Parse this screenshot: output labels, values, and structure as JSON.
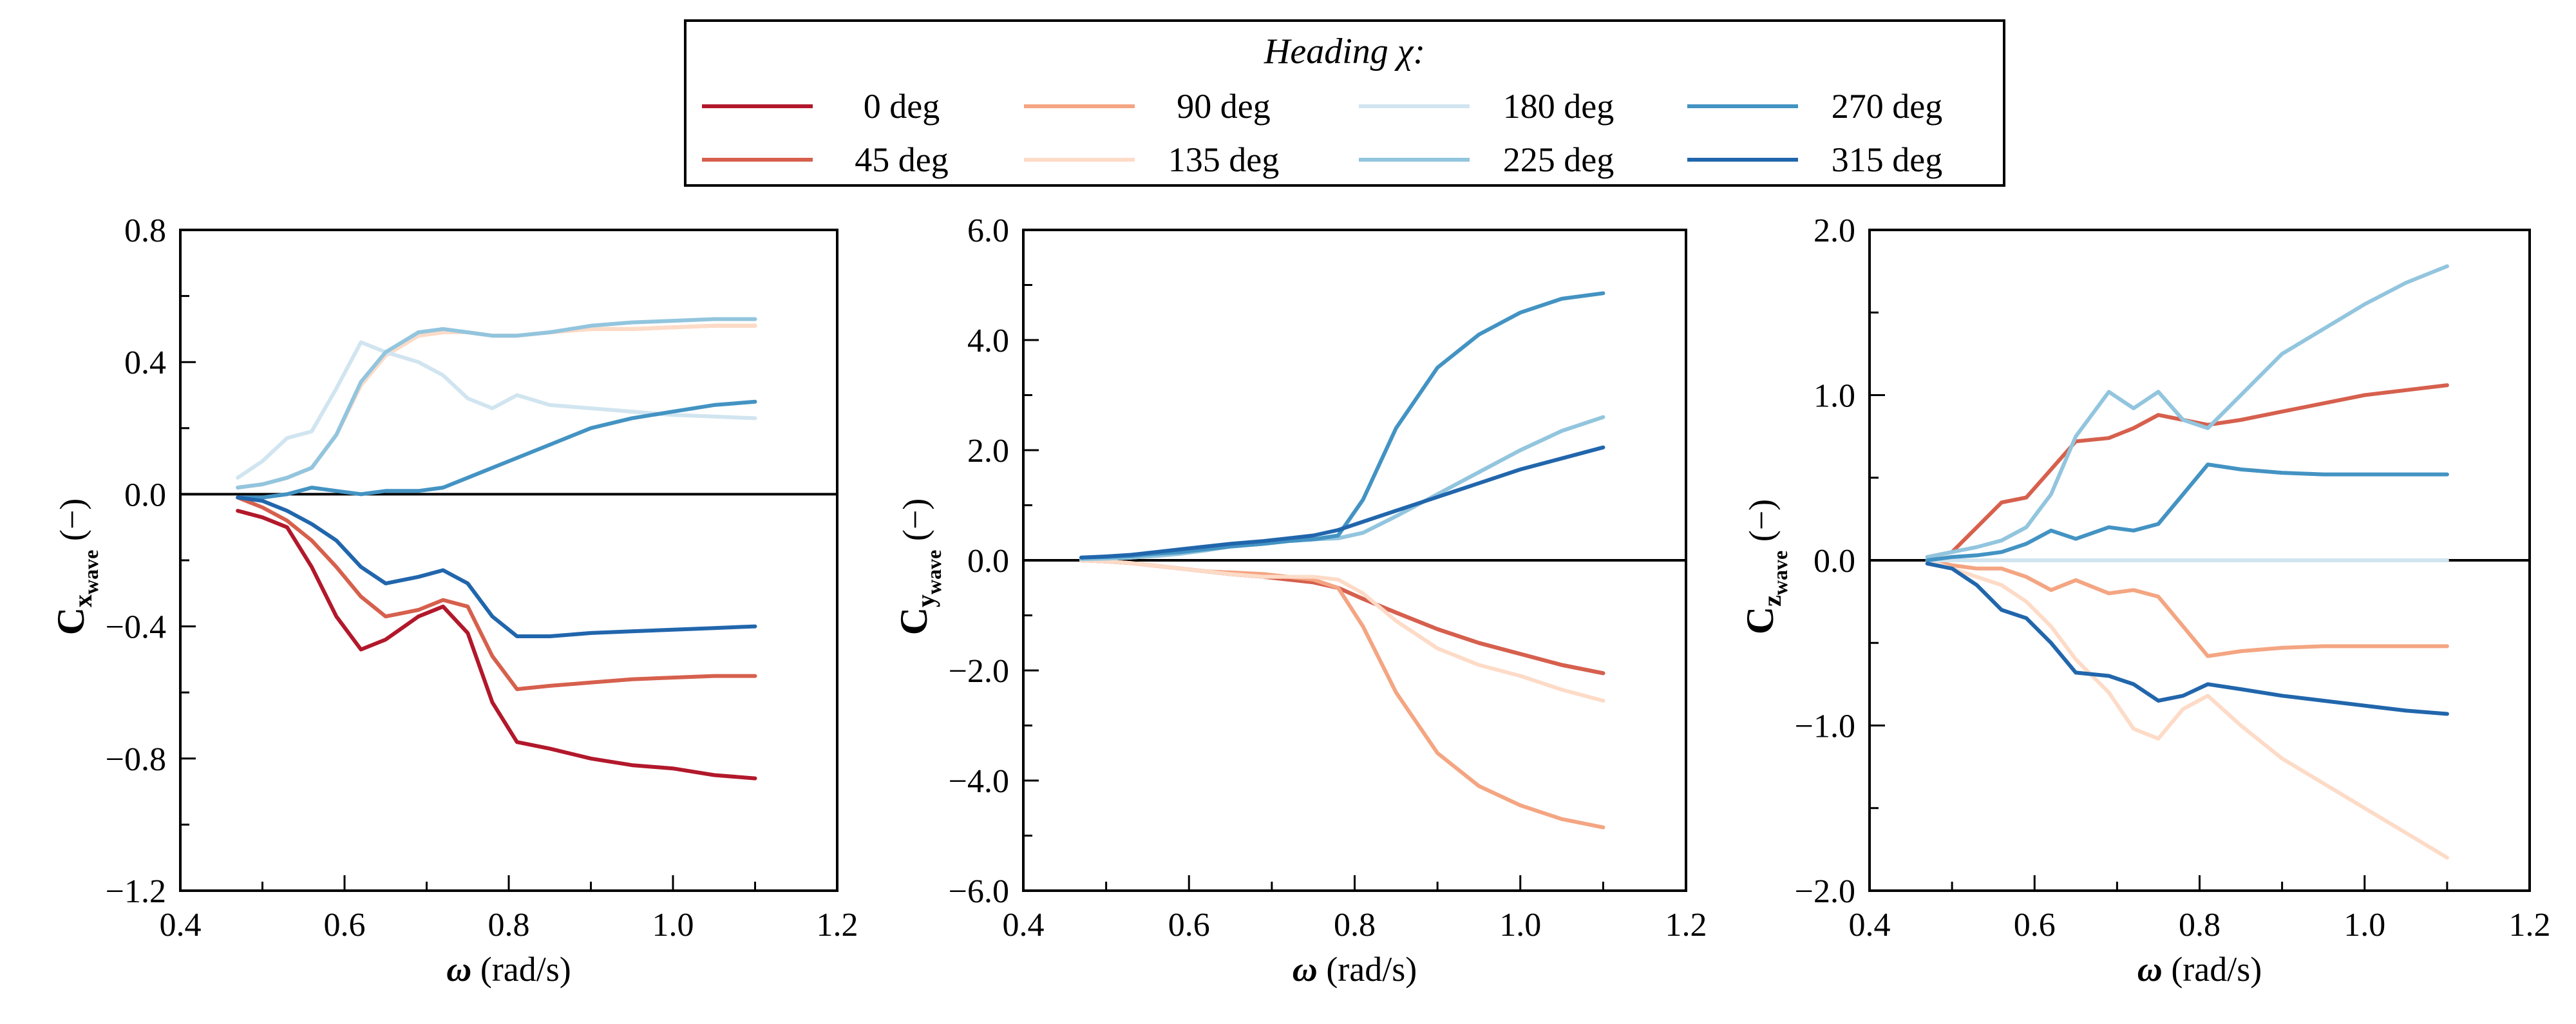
{
  "legend": {
    "title": "Heading χ:",
    "entries": [
      {
        "label": "0 deg",
        "color": "#b2182b"
      },
      {
        "label": "45 deg",
        "color": "#d6604d"
      },
      {
        "label": "90 deg",
        "color": "#f4a582"
      },
      {
        "label": "135 deg",
        "color": "#fddbc7"
      },
      {
        "label": "180 deg",
        "color": "#d1e5f0"
      },
      {
        "label": "225 deg",
        "color": "#92c5de"
      },
      {
        "label": "270 deg",
        "color": "#4393c3"
      },
      {
        "label": "315 deg",
        "color": "#2166ac"
      }
    ]
  },
  "chart_data": [
    {
      "type": "line",
      "ylabel_main": "C",
      "ylabel_sub1": "x",
      "ylabel_sub2": "wave",
      "ylabel_unit": "(−)",
      "xlabel_sym": "ω",
      "xlabel_unit": "(rad/s)",
      "xlim": [
        0.4,
        1.2
      ],
      "ylim": [
        -1.2,
        0.8
      ],
      "xticks": [
        0.4,
        0.6,
        0.8,
        1.0,
        1.2
      ],
      "xtick_labels": [
        "0.4",
        "0.6",
        "0.8",
        "1.0",
        "1.2"
      ],
      "yticks": [
        -1.2,
        -0.8,
        -0.4,
        0.0,
        0.4,
        0.8
      ],
      "ytick_labels": [
        "−1.2",
        "−0.8",
        "−0.4",
        "0.0",
        "0.4",
        "0.8"
      ],
      "zero_line": true,
      "x": [
        0.47,
        0.5,
        0.53,
        0.56,
        0.59,
        0.62,
        0.65,
        0.69,
        0.72,
        0.75,
        0.78,
        0.81,
        0.85,
        0.9,
        0.95,
        1.0,
        1.05,
        1.1
      ],
      "series": [
        {
          "name": "0 deg",
          "values": [
            -0.05,
            -0.07,
            -0.1,
            -0.22,
            -0.37,
            -0.47,
            -0.44,
            -0.37,
            -0.34,
            -0.42,
            -0.63,
            -0.75,
            -0.77,
            -0.8,
            -0.82,
            -0.83,
            -0.85,
            -0.86
          ]
        },
        {
          "name": "45 deg",
          "values": [
            -0.01,
            -0.04,
            -0.08,
            -0.14,
            -0.22,
            -0.31,
            -0.37,
            -0.35,
            -0.32,
            -0.34,
            -0.49,
            -0.59,
            -0.58,
            -0.57,
            -0.56,
            -0.555,
            -0.55,
            -0.55
          ]
        },
        {
          "name": "90 deg",
          "values": [
            0.02,
            0.03,
            0.05,
            0.08,
            0.18,
            0.33,
            0.42,
            0.48,
            0.49,
            0.49,
            0.48,
            0.48,
            0.49,
            0.5,
            0.5,
            0.505,
            0.51,
            0.51
          ]
        },
        {
          "name": "135 deg",
          "values": [
            0.02,
            0.03,
            0.05,
            0.08,
            0.18,
            0.33,
            0.42,
            0.48,
            0.49,
            0.49,
            0.48,
            0.48,
            0.49,
            0.5,
            0.5,
            0.505,
            0.51,
            0.51
          ]
        },
        {
          "name": "180 deg",
          "values": [
            0.05,
            0.1,
            0.17,
            0.19,
            0.32,
            0.46,
            0.43,
            0.4,
            0.36,
            0.29,
            0.26,
            0.3,
            0.27,
            0.26,
            0.25,
            0.24,
            0.235,
            0.23
          ]
        },
        {
          "name": "225 deg",
          "values": [
            0.02,
            0.03,
            0.05,
            0.08,
            0.18,
            0.34,
            0.43,
            0.49,
            0.5,
            0.49,
            0.48,
            0.48,
            0.49,
            0.51,
            0.52,
            0.525,
            0.53,
            0.53
          ]
        },
        {
          "name": "270 deg",
          "values": [
            -0.01,
            -0.01,
            0.0,
            0.02,
            0.01,
            0.0,
            0.01,
            0.01,
            0.02,
            0.05,
            0.08,
            0.11,
            0.15,
            0.2,
            0.23,
            0.25,
            0.27,
            0.28
          ]
        },
        {
          "name": "315 deg",
          "values": [
            -0.01,
            -0.02,
            -0.05,
            -0.09,
            -0.14,
            -0.22,
            -0.27,
            -0.25,
            -0.23,
            -0.27,
            -0.37,
            -0.43,
            -0.43,
            -0.42,
            -0.415,
            -0.41,
            -0.405,
            -0.4
          ]
        }
      ]
    },
    {
      "type": "line",
      "ylabel_main": "C",
      "ylabel_sub1": "y",
      "ylabel_sub2": "wave",
      "ylabel_unit": "(−)",
      "xlabel_sym": "ω",
      "xlabel_unit": "(rad/s)",
      "xlim": [
        0.4,
        1.2
      ],
      "ylim": [
        -6.0,
        6.0
      ],
      "xticks": [
        0.4,
        0.6,
        0.8,
        1.0,
        1.2
      ],
      "xtick_labels": [
        "0.4",
        "0.6",
        "0.8",
        "1.0",
        "1.2"
      ],
      "yticks": [
        -6.0,
        -4.0,
        -2.0,
        0.0,
        2.0,
        4.0,
        6.0
      ],
      "ytick_labels": [
        "−6.0",
        "−4.0",
        "−2.0",
        "0.0",
        "2.0",
        "4.0",
        "6.0"
      ],
      "zero_line": true,
      "x": [
        0.47,
        0.5,
        0.53,
        0.56,
        0.59,
        0.62,
        0.65,
        0.69,
        0.72,
        0.75,
        0.78,
        0.81,
        0.85,
        0.9,
        0.95,
        1.0,
        1.05,
        1.1
      ],
      "series": [
        {
          "name": "0 deg",
          "values": [
            0.0,
            -0.02,
            -0.05,
            -0.1,
            -0.15,
            -0.2,
            -0.25,
            -0.3,
            -0.35,
            -0.4,
            -0.5,
            -0.7,
            -0.95,
            -1.25,
            -1.5,
            -1.7,
            -1.9,
            -2.05
          ]
        },
        {
          "name": "45 deg",
          "values": [
            0.0,
            -0.02,
            -0.05,
            -0.1,
            -0.15,
            -0.2,
            -0.25,
            -0.3,
            -0.35,
            -0.4,
            -0.5,
            -0.7,
            -0.95,
            -1.25,
            -1.5,
            -1.7,
            -1.9,
            -2.05
          ]
        },
        {
          "name": "90 deg",
          "values": [
            0.0,
            -0.02,
            -0.05,
            -0.1,
            -0.15,
            -0.2,
            -0.22,
            -0.25,
            -0.3,
            -0.35,
            -0.5,
            -1.2,
            -2.4,
            -3.5,
            -4.1,
            -4.45,
            -4.7,
            -4.85
          ]
        },
        {
          "name": "135 deg",
          "values": [
            0.0,
            -0.02,
            -0.05,
            -0.1,
            -0.15,
            -0.2,
            -0.25,
            -0.3,
            -0.3,
            -0.3,
            -0.35,
            -0.6,
            -1.1,
            -1.6,
            -1.9,
            -2.1,
            -2.35,
            -2.55
          ]
        },
        {
          "name": "180 deg",
          "values": [
            0.02,
            0.03,
            0.05,
            0.08,
            0.12,
            0.18,
            0.25,
            0.3,
            0.35,
            0.38,
            0.4,
            0.5,
            0.8,
            1.2,
            1.6,
            2.0,
            2.35,
            2.6
          ]
        },
        {
          "name": "225 deg",
          "values": [
            0.02,
            0.03,
            0.05,
            0.08,
            0.12,
            0.18,
            0.25,
            0.3,
            0.35,
            0.38,
            0.4,
            0.5,
            0.8,
            1.2,
            1.6,
            2.0,
            2.35,
            2.6
          ]
        },
        {
          "name": "270 deg",
          "values": [
            0.05,
            0.06,
            0.08,
            0.12,
            0.15,
            0.2,
            0.25,
            0.3,
            0.35,
            0.38,
            0.45,
            1.1,
            2.4,
            3.5,
            4.1,
            4.5,
            4.75,
            4.85
          ]
        },
        {
          "name": "315 deg",
          "values": [
            0.05,
            0.07,
            0.1,
            0.15,
            0.2,
            0.25,
            0.3,
            0.35,
            0.4,
            0.45,
            0.55,
            0.7,
            0.9,
            1.15,
            1.4,
            1.65,
            1.85,
            2.05
          ]
        }
      ]
    },
    {
      "type": "line",
      "ylabel_main": "C",
      "ylabel_sub1": "z",
      "ylabel_sub2": "wave",
      "ylabel_unit": "(−)",
      "xlabel_sym": "ω",
      "xlabel_unit": "(rad/s)",
      "xlim": [
        0.4,
        1.2
      ],
      "ylim": [
        -2.0,
        2.0
      ],
      "xticks": [
        0.4,
        0.6,
        0.8,
        1.0,
        1.2
      ],
      "xtick_labels": [
        "0.4",
        "0.6",
        "0.8",
        "1.0",
        "1.2"
      ],
      "yticks": [
        -2.0,
        -1.0,
        0.0,
        1.0,
        2.0
      ],
      "ytick_labels": [
        "−2.0",
        "−1.0",
        "0.0",
        "1.0",
        "2.0"
      ],
      "zero_line": true,
      "x": [
        0.47,
        0.5,
        0.53,
        0.56,
        0.59,
        0.62,
        0.65,
        0.69,
        0.72,
        0.75,
        0.78,
        0.81,
        0.85,
        0.9,
        0.95,
        1.0,
        1.05,
        1.1
      ],
      "series": [
        {
          "name": "0 deg",
          "values": [
            0.0,
            0.0,
            0.0,
            0.0,
            0.0,
            0.0,
            0.0,
            0.0,
            0.0,
            0.0,
            0.0,
            0.0,
            0.0,
            0.0,
            0.0,
            0.0,
            0.0,
            0.0
          ]
        },
        {
          "name": "45 deg",
          "values": [
            0.02,
            0.05,
            0.2,
            0.35,
            0.38,
            0.55,
            0.72,
            0.74,
            0.8,
            0.88,
            0.85,
            0.82,
            0.85,
            0.9,
            0.95,
            1.0,
            1.03,
            1.06
          ]
        },
        {
          "name": "90 deg",
          "values": [
            0.0,
            -0.03,
            -0.05,
            -0.05,
            -0.1,
            -0.18,
            -0.12,
            -0.2,
            -0.18,
            -0.22,
            -0.4,
            -0.58,
            -0.55,
            -0.53,
            -0.52,
            -0.52,
            -0.52,
            -0.52
          ]
        },
        {
          "name": "135 deg",
          "values": [
            0.0,
            -0.05,
            -0.1,
            -0.15,
            -0.25,
            -0.4,
            -0.6,
            -0.8,
            -1.02,
            -1.08,
            -0.9,
            -0.82,
            -1.0,
            -1.2,
            -1.35,
            -1.5,
            -1.65,
            -1.8
          ]
        },
        {
          "name": "180 deg",
          "values": [
            0.0,
            0.0,
            0.0,
            0.0,
            0.0,
            0.0,
            0.0,
            0.0,
            0.0,
            0.0,
            0.0,
            0.0,
            0.0,
            0.0,
            0.0,
            0.0,
            0.0,
            0.0
          ]
        },
        {
          "name": "225 deg",
          "values": [
            0.02,
            0.05,
            0.08,
            0.12,
            0.2,
            0.4,
            0.75,
            1.02,
            0.92,
            1.02,
            0.85,
            0.8,
            1.0,
            1.25,
            1.4,
            1.55,
            1.68,
            1.78
          ]
        },
        {
          "name": "270 deg",
          "values": [
            0.0,
            0.02,
            0.03,
            0.05,
            0.1,
            0.18,
            0.13,
            0.2,
            0.18,
            0.22,
            0.4,
            0.58,
            0.55,
            0.53,
            0.52,
            0.52,
            0.52,
            0.52
          ]
        },
        {
          "name": "315 deg",
          "values": [
            -0.02,
            -0.05,
            -0.15,
            -0.3,
            -0.35,
            -0.5,
            -0.68,
            -0.7,
            -0.75,
            -0.85,
            -0.82,
            -0.75,
            -0.78,
            -0.82,
            -0.85,
            -0.88,
            -0.91,
            -0.93
          ]
        }
      ]
    }
  ]
}
